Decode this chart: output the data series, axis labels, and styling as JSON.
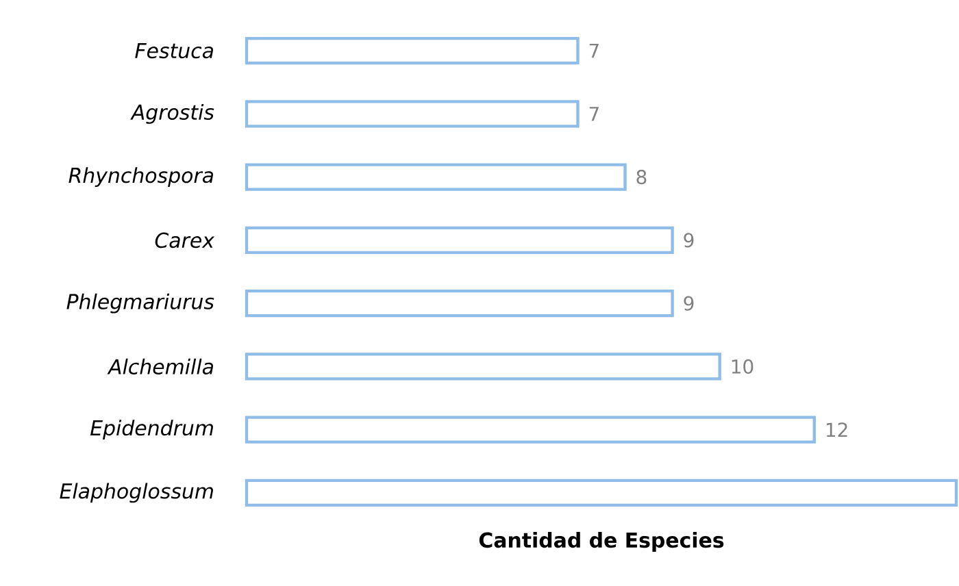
{
  "chart_data": {
    "type": "bar",
    "orientation": "horizontal",
    "xlabel": "Cantidad de Especies",
    "categories": [
      "Festuca",
      "Agrostis",
      "Rhynchospora",
      "Carex",
      "Phlegmariurus",
      "Alchemilla",
      "Epidendrum",
      "Elaphoglossum"
    ],
    "values": [
      7,
      7,
      8,
      9,
      9,
      10,
      12,
      15
    ],
    "value_labels": [
      "7",
      "7",
      "8",
      "9",
      "9",
      "10",
      "12",
      null
    ],
    "color": "#8fbde8"
  }
}
